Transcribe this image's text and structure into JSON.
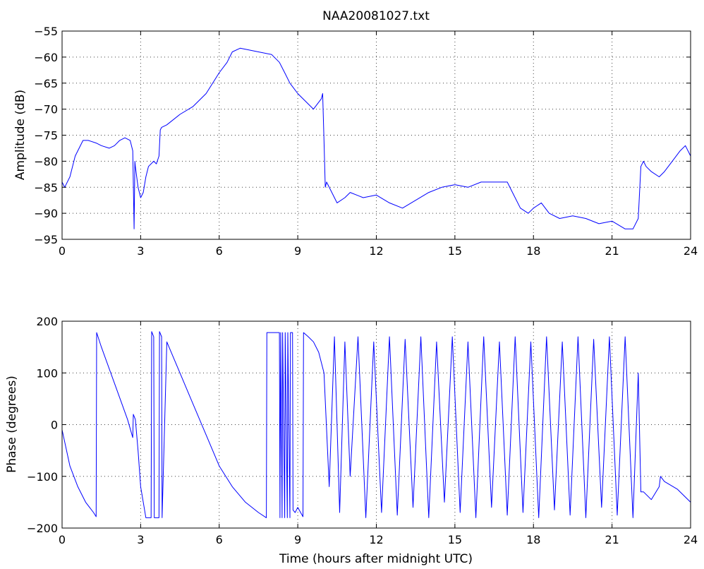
{
  "chart_data": [
    {
      "type": "line",
      "title": "NAA20081027.txt",
      "xlabel": "",
      "ylabel": "Amplitude (dB)",
      "xlim": [
        0,
        24
      ],
      "ylim": [
        -95,
        -55
      ],
      "xticks": [
        0,
        3,
        6,
        9,
        12,
        15,
        18,
        21,
        24
      ],
      "xtick_labels": [
        "0",
        "3",
        "6",
        "9",
        "12",
        "15",
        "18",
        "21",
        "24"
      ],
      "yticks": [
        -55,
        -60,
        -65,
        -70,
        -75,
        -80,
        -85,
        -90,
        -95
      ],
      "ytick_labels": [
        "−55",
        "−60",
        "−65",
        "−70",
        "−75",
        "−80",
        "−85",
        "−90",
        "−95"
      ],
      "grid": true,
      "line_color": "#0000ff",
      "series": [
        {
          "x": [
            0,
            0.1,
            0.3,
            0.5,
            0.8,
            1.0,
            1.3,
            1.5,
            1.8,
            2.0,
            2.2,
            2.4,
            2.6,
            2.7,
            2.75,
            2.78,
            2.8,
            2.9,
            3.0,
            3.1,
            3.2,
            3.3,
            3.5,
            3.6,
            3.7,
            3.75,
            3.8,
            4.0,
            4.5,
            5.0,
            5.5,
            6.0,
            6.3,
            6.5,
            6.8,
            7.0,
            7.5,
            8.0,
            8.3,
            8.5,
            8.7,
            9.0,
            9.3,
            9.6,
            9.9,
            9.95,
            10.0,
            10.05,
            10.1,
            10.3,
            10.5,
            10.8,
            11.0,
            11.5,
            12.0,
            12.5,
            13.0,
            13.5,
            14.0,
            14.5,
            15.0,
            15.5,
            16.0,
            16.5,
            17.0,
            17.2,
            17.5,
            17.8,
            18.0,
            18.3,
            18.6,
            19.0,
            19.5,
            20.0,
            20.5,
            21.0,
            21.5,
            21.8,
            22.0,
            22.1,
            22.2,
            22.3,
            22.5,
            22.8,
            23.0,
            23.3,
            23.6,
            23.8,
            24.0
          ],
          "y": [
            -84,
            -85,
            -83,
            -79,
            -76,
            -76,
            -76.5,
            -77,
            -77.5,
            -77,
            -76,
            -75.5,
            -76,
            -78,
            -93,
            -80,
            -81,
            -85,
            -87,
            -86,
            -83,
            -81,
            -80,
            -80.5,
            -79,
            -74,
            -73.5,
            -73,
            -71,
            -69.5,
            -67,
            -63,
            -61,
            -59,
            -58.3,
            -58.5,
            -59,
            -59.5,
            -61,
            -63,
            -65,
            -67,
            -68.5,
            -70,
            -68,
            -67,
            -76,
            -85,
            -84,
            -86,
            -88,
            -87,
            -86,
            -87,
            -86.5,
            -88,
            -89,
            -87.5,
            -86,
            -85,
            -84.5,
            -85,
            -84,
            -84,
            -84,
            -86,
            -89,
            -90,
            -89,
            -88,
            -90,
            -91,
            -90.5,
            -91,
            -92,
            -91.5,
            -93,
            -93,
            -91,
            -81,
            -80,
            -81,
            -82,
            -83,
            -82,
            -80,
            -78,
            -77,
            -79
          ]
        }
      ]
    },
    {
      "type": "line",
      "title": "",
      "xlabel": "Time (hours after midnight UTC)",
      "ylabel": "Phase (degrees)",
      "xlim": [
        0,
        24
      ],
      "ylim": [
        -200,
        200
      ],
      "xticks": [
        0,
        3,
        6,
        9,
        12,
        15,
        18,
        21,
        24
      ],
      "xtick_labels": [
        "0",
        "3",
        "6",
        "9",
        "12",
        "15",
        "18",
        "21",
        "24"
      ],
      "yticks": [
        200,
        100,
        0,
        -100,
        -200
      ],
      "ytick_labels": [
        "200",
        "100",
        "0",
        "−100",
        "−200"
      ],
      "grid": true,
      "line_color": "#0000ff",
      "series": [
        {
          "x": [
            0,
            0.3,
            0.6,
            0.9,
            1.2,
            1.3,
            1.32,
            1.5,
            2.0,
            2.5,
            2.7,
            2.72,
            2.8,
            2.9,
            3.0,
            3.2,
            3.4,
            3.42,
            3.5,
            3.52,
            3.7,
            3.72,
            3.8,
            3.82,
            4.0,
            4.5,
            5.0,
            5.5,
            6.0,
            6.5,
            7.0,
            7.5,
            7.8,
            7.82,
            8.0,
            8.3,
            8.32,
            8.35,
            8.4,
            8.42,
            8.5,
            8.52,
            8.6,
            8.62,
            8.7,
            8.72,
            8.8,
            8.82,
            8.9,
            9.0,
            9.2,
            9.22,
            9.4,
            9.6,
            9.8,
            10.0,
            10.2,
            10.4,
            10.6,
            10.8,
            11.0,
            11.3,
            11.6,
            11.9,
            12.2,
            12.5,
            12.8,
            13.1,
            13.4,
            13.7,
            14.0,
            14.3,
            14.6,
            14.9,
            15.2,
            15.5,
            15.8,
            16.1,
            16.4,
            16.7,
            17.0,
            17.3,
            17.6,
            17.9,
            18.2,
            18.5,
            18.8,
            19.1,
            19.4,
            19.7,
            20.0,
            20.3,
            20.6,
            20.9,
            21.2,
            21.5,
            21.8,
            22.0,
            22.1,
            22.2,
            22.5,
            22.8,
            22.85,
            23.0,
            23.5,
            24.0
          ],
          "y": [
            -10,
            -80,
            -120,
            -150,
            -170,
            -178,
            178,
            150,
            80,
            10,
            -25,
            20,
            10,
            -50,
            -120,
            -180,
            -180,
            180,
            170,
            -180,
            -180,
            180,
            170,
            -180,
            160,
            100,
            40,
            -20,
            -80,
            -120,
            -150,
            -170,
            -180,
            178,
            178,
            178,
            -180,
            178,
            -180,
            178,
            -180,
            178,
            -180,
            178,
            -180,
            178,
            178,
            -165,
            -170,
            -160,
            -178,
            178,
            170,
            160,
            140,
            100,
            -120,
            170,
            -170,
            160,
            -100,
            170,
            -180,
            160,
            -170,
            170,
            -175,
            165,
            -160,
            170,
            -180,
            160,
            -150,
            170,
            -170,
            160,
            -180,
            170,
            -160,
            160,
            -175,
            170,
            -170,
            160,
            -180,
            170,
            -165,
            160,
            -175,
            170,
            -180,
            165,
            -160,
            170,
            -175,
            170,
            -180,
            100,
            -130,
            -130,
            -145,
            -120,
            -100,
            -110,
            -125,
            -150
          ]
        }
      ]
    }
  ]
}
